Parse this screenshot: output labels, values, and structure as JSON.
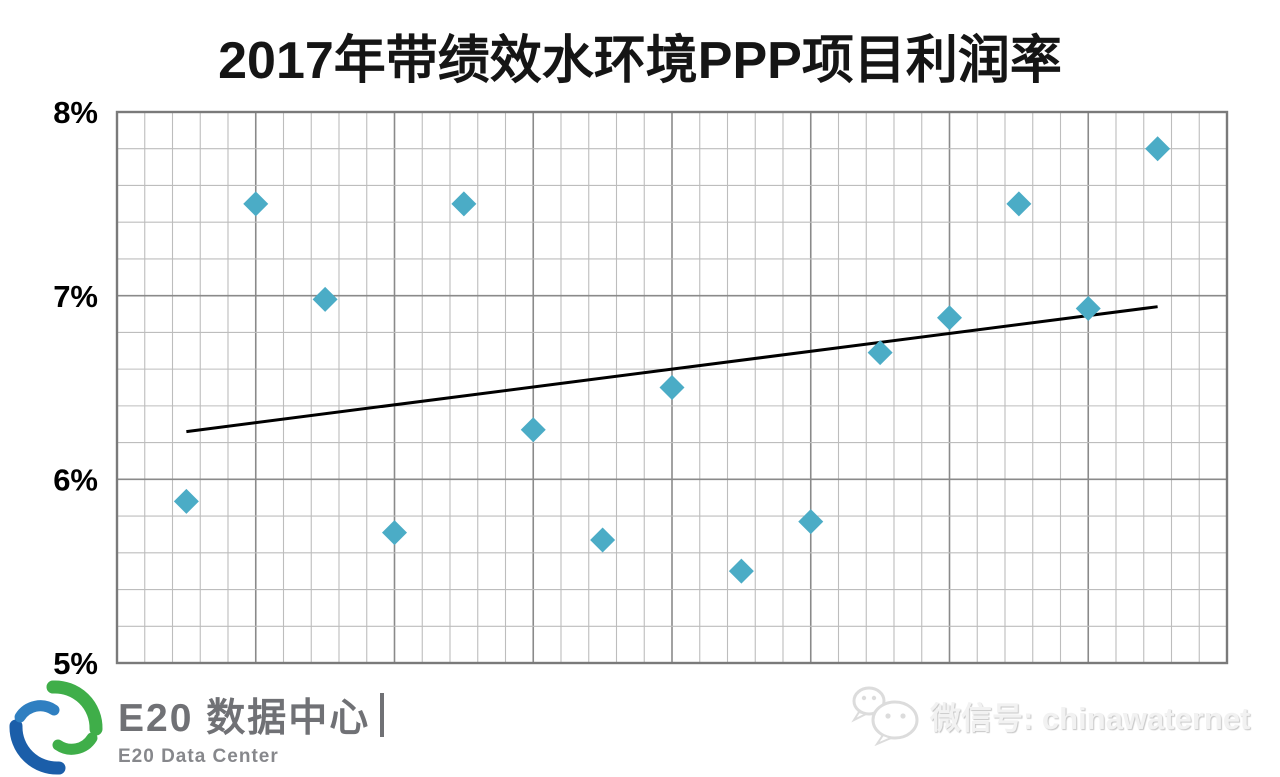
{
  "title": "2017年带绩效水环境PPP项目利润率",
  "footer_logo": {
    "name_cn": "E20 数据中心",
    "name_en": "E20 Data Center",
    "green": "#3fae49",
    "blue_dark": "#1b5ea9",
    "blue_light": "#2f7fc1"
  },
  "watermark": {
    "label": "微信号: chinawaternet",
    "icon": "wechat"
  },
  "chart_data": {
    "type": "scatter",
    "title": "2017年带绩效水环境PPP项目利润率",
    "x": [
      1,
      2,
      3,
      4,
      5,
      6,
      7,
      8,
      9,
      10,
      11,
      12,
      13,
      14,
      15
    ],
    "values": [
      5.88,
      7.5,
      6.98,
      5.71,
      7.5,
      6.27,
      5.67,
      6.5,
      5.5,
      5.77,
      6.69,
      6.88,
      7.5,
      6.93,
      7.8
    ],
    "series_name": "带绩效水环境PPP项目利润率",
    "trendline": {
      "x1": 1,
      "y1": 6.26,
      "x2": 15,
      "y2": 6.94
    },
    "xlabel": "",
    "ylabel": "",
    "ylim": [
      5,
      8
    ],
    "yticks": [
      {
        "value": 8,
        "label": "8%"
      },
      {
        "value": 7,
        "label": "7%"
      },
      {
        "value": 6,
        "label": "6%"
      },
      {
        "value": 5,
        "label": "5%"
      }
    ],
    "y_minor_step": 0.2,
    "x_minor_divisions": 40,
    "x_major_every": 5,
    "grid": true,
    "legend": "none",
    "marker": "diamond",
    "marker_color": "#4BACC6",
    "trend_color": "#000000",
    "grid_minor_color": "#bdbdbd",
    "grid_major_color": "#8a8a8a",
    "border_color": "#7a7a7a",
    "tick_label_color": "#000000"
  }
}
